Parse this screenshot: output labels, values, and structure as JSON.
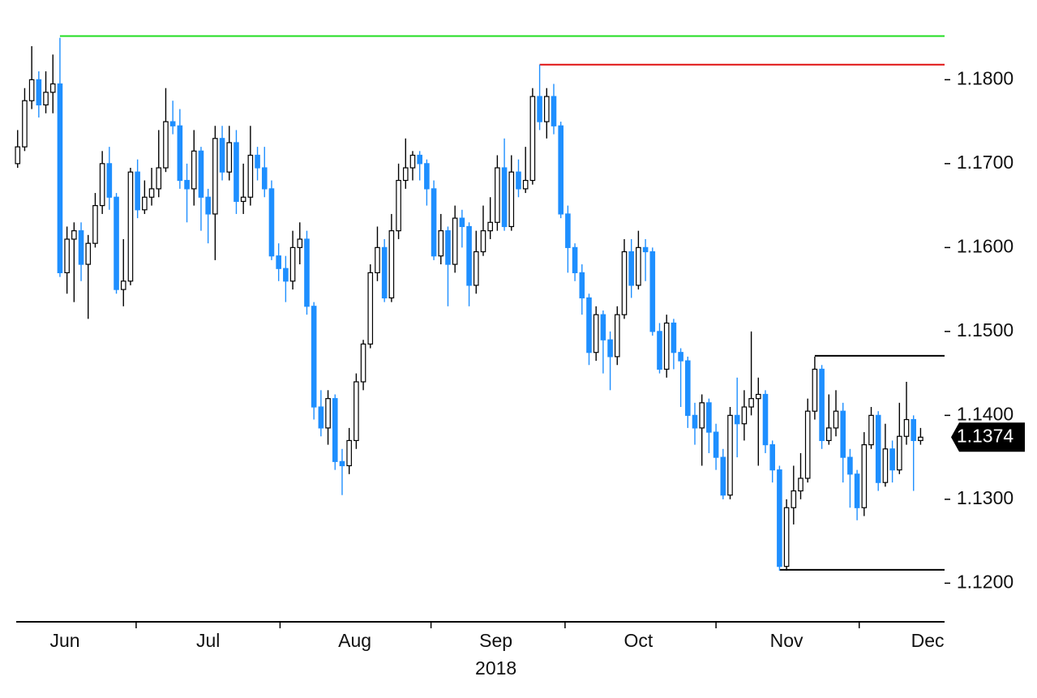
{
  "chart_data": {
    "type": "candlestick",
    "open": [
      1.17,
      1.172,
      1.1775,
      1.18,
      1.177,
      1.1785,
      1.1795,
      1.157,
      1.161,
      1.162,
      1.158,
      1.1605,
      1.165,
      1.17,
      1.166,
      1.155,
      1.156,
      1.169,
      1.1645,
      1.166,
      1.167,
      1.1695,
      1.175,
      1.1745,
      1.168,
      1.167,
      1.1715,
      1.166,
      1.164,
      1.173,
      1.169,
      1.1725,
      1.1655,
      1.166,
      1.171,
      1.1695,
      1.167,
      1.159,
      1.1575,
      1.156,
      1.16,
      1.161,
      1.153,
      1.141,
      1.1385,
      1.142,
      1.1345,
      1.134,
      1.137,
      1.144,
      1.1485,
      1.157,
      1.16,
      1.154,
      1.162,
      1.168,
      1.1695,
      1.171,
      1.17,
      1.167,
      1.159,
      1.162,
      1.158,
      1.1635,
      1.1625,
      1.1555,
      1.1595,
      1.162,
      1.163,
      1.1695,
      1.1625,
      1.169,
      1.167,
      1.168,
      1.178,
      1.175,
      1.178,
      1.1745,
      1.164,
      1.16,
      1.157,
      1.154,
      1.1475,
      1.152,
      1.149,
      1.147,
      1.152,
      1.1595,
      1.1555,
      1.16,
      1.1595,
      1.15,
      1.1455,
      1.151,
      1.1475,
      1.1465,
      1.14,
      1.1385,
      1.1415,
      1.138,
      1.135,
      1.1305,
      1.14,
      1.139,
      1.141,
      1.142,
      1.1425,
      1.1365,
      1.1335,
      1.122,
      1.129,
      1.131,
      1.1325,
      1.1405,
      1.1455,
      1.137,
      1.1385,
      1.1405,
      1.135,
      1.133,
      1.129,
      1.1365,
      1.14,
      1.132,
      1.136,
      1.1335,
      1.1375,
      1.1395,
      1.137
    ],
    "high": [
      1.174,
      1.179,
      1.184,
      1.181,
      1.181,
      1.183,
      1.185,
      1.1625,
      1.163,
      1.163,
      1.1615,
      1.1665,
      1.1715,
      1.172,
      1.1665,
      1.161,
      1.1695,
      1.1705,
      1.168,
      1.1695,
      1.174,
      1.179,
      1.1775,
      1.1765,
      1.17,
      1.174,
      1.172,
      1.167,
      1.1745,
      1.1745,
      1.1745,
      1.174,
      1.17,
      1.1745,
      1.172,
      1.172,
      1.168,
      1.1605,
      1.159,
      1.162,
      1.163,
      1.162,
      1.1535,
      1.143,
      1.143,
      1.1425,
      1.136,
      1.1385,
      1.145,
      1.149,
      1.158,
      1.1625,
      1.161,
      1.164,
      1.17,
      1.173,
      1.1715,
      1.1715,
      1.1705,
      1.168,
      1.164,
      1.1625,
      1.165,
      1.1645,
      1.163,
      1.162,
      1.165,
      1.166,
      1.171,
      1.173,
      1.171,
      1.1705,
      1.172,
      1.179,
      1.1818,
      1.179,
      1.1795,
      1.175,
      1.165,
      1.1605,
      1.158,
      1.1545,
      1.153,
      1.1525,
      1.15,
      1.153,
      1.161,
      1.161,
      1.162,
      1.161,
      1.16,
      1.151,
      1.152,
      1.1515,
      1.148,
      1.147,
      1.1415,
      1.1425,
      1.142,
      1.139,
      1.136,
      1.141,
      1.1445,
      1.143,
      1.15,
      1.1445,
      1.143,
      1.137,
      1.134,
      1.13,
      1.134,
      1.1355,
      1.142,
      1.147,
      1.146,
      1.1425,
      1.143,
      1.1415,
      1.136,
      1.1335,
      1.138,
      1.141,
      1.1405,
      1.139,
      1.137,
      1.1415,
      1.144,
      1.14,
      1.1385
    ],
    "low": [
      1.1695,
      1.1715,
      1.1765,
      1.1755,
      1.176,
      1.176,
      1.1565,
      1.1545,
      1.1535,
      1.156,
      1.1515,
      1.16,
      1.164,
      1.1645,
      1.1545,
      1.153,
      1.1555,
      1.1635,
      1.164,
      1.165,
      1.166,
      1.169,
      1.1735,
      1.167,
      1.163,
      1.165,
      1.162,
      1.1605,
      1.1585,
      1.168,
      1.168,
      1.164,
      1.164,
      1.165,
      1.168,
      1.166,
      1.1585,
      1.156,
      1.1535,
      1.155,
      1.158,
      1.152,
      1.1395,
      1.1375,
      1.1365,
      1.1335,
      1.1305,
      1.133,
      1.136,
      1.143,
      1.148,
      1.156,
      1.1535,
      1.1535,
      1.161,
      1.167,
      1.168,
      1.168,
      1.165,
      1.1585,
      1.158,
      1.153,
      1.157,
      1.16,
      1.153,
      1.1545,
      1.159,
      1.161,
      1.162,
      1.162,
      1.162,
      1.166,
      1.1665,
      1.1675,
      1.174,
      1.173,
      1.1735,
      1.1635,
      1.157,
      1.156,
      1.152,
      1.146,
      1.1465,
      1.145,
      1.143,
      1.146,
      1.1515,
      1.154,
      1.155,
      1.156,
      1.1495,
      1.145,
      1.1445,
      1.1455,
      1.141,
      1.1385,
      1.1365,
      1.134,
      1.1355,
      1.1335,
      1.13,
      1.13,
      1.135,
      1.137,
      1.14,
      1.134,
      1.1355,
      1.132,
      1.1215,
      1.1215,
      1.127,
      1.13,
      1.132,
      1.1395,
      1.136,
      1.1365,
      1.1375,
      1.132,
      1.129,
      1.1275,
      1.128,
      1.136,
      1.131,
      1.1315,
      1.132,
      1.133,
      1.1365,
      1.131,
      1.1365
    ],
    "close": [
      1.172,
      1.1775,
      1.18,
      1.177,
      1.1785,
      1.1795,
      1.157,
      1.161,
      1.162,
      1.158,
      1.1605,
      1.165,
      1.17,
      1.166,
      1.155,
      1.156,
      1.169,
      1.1645,
      1.166,
      1.167,
      1.1695,
      1.175,
      1.1745,
      1.168,
      1.167,
      1.1715,
      1.166,
      1.164,
      1.173,
      1.169,
      1.1725,
      1.1655,
      1.166,
      1.171,
      1.1695,
      1.167,
      1.159,
      1.1575,
      1.156,
      1.16,
      1.161,
      1.153,
      1.141,
      1.1385,
      1.142,
      1.1345,
      1.134,
      1.137,
      1.144,
      1.1485,
      1.157,
      1.16,
      1.154,
      1.162,
      1.168,
      1.1695,
      1.171,
      1.17,
      1.167,
      1.159,
      1.162,
      1.158,
      1.1635,
      1.1625,
      1.1555,
      1.1595,
      1.162,
      1.163,
      1.1695,
      1.1625,
      1.169,
      1.167,
      1.168,
      1.178,
      1.175,
      1.178,
      1.1745,
      1.164,
      1.16,
      1.157,
      1.154,
      1.1475,
      1.152,
      1.149,
      1.147,
      1.152,
      1.1595,
      1.1555,
      1.16,
      1.1595,
      1.15,
      1.1455,
      1.151,
      1.1475,
      1.1465,
      1.14,
      1.1385,
      1.1415,
      1.138,
      1.135,
      1.1305,
      1.14,
      1.139,
      1.141,
      1.142,
      1.1425,
      1.1365,
      1.1335,
      1.122,
      1.129,
      1.131,
      1.1325,
      1.1405,
      1.1455,
      1.137,
      1.1385,
      1.1405,
      1.135,
      1.133,
      1.129,
      1.1365,
      1.14,
      1.132,
      1.136,
      1.1335,
      1.1375,
      1.1395,
      1.137,
      1.1374
    ],
    "up_color": "#ffffff",
    "down_color": "#1e8fff",
    "levels": [
      {
        "value": 1.1852,
        "from": 6,
        "color": "#22dd22"
      },
      {
        "value": 1.1818,
        "from": 74,
        "color": "#e01010"
      },
      {
        "value": 1.1471,
        "from": 113,
        "color": "#000000"
      },
      {
        "value": 1.1216,
        "from": 108,
        "color": "#000000"
      }
    ],
    "last_price": 1.1374,
    "xlim": [
      -0.2,
      131.4
    ],
    "ylim": [
      1.1154,
      1.1895
    ],
    "yticks": [
      {
        "value": 1.12,
        "label": "1.1200"
      },
      {
        "value": 1.13,
        "label": "1.1300"
      },
      {
        "value": 1.14,
        "label": "1.1400"
      },
      {
        "value": 1.15,
        "label": "1.1500"
      },
      {
        "value": 1.16,
        "label": "1.1600"
      },
      {
        "value": 1.17,
        "label": "1.1700"
      },
      {
        "value": 1.18,
        "label": "1.1800"
      }
    ],
    "xlabels": [
      {
        "value": 6.7,
        "label": "Jun"
      },
      {
        "value": 27,
        "label": "Jul"
      },
      {
        "value": 47.8,
        "label": "Aug"
      },
      {
        "value": 67.8,
        "label": "Sep"
      },
      {
        "value": 88,
        "label": "Oct"
      },
      {
        "value": 109,
        "label": "Nov"
      },
      {
        "value": 129,
        "label": "Dec"
      }
    ],
    "xticks": [
      16.8,
      37.2,
      58.6,
      77.6,
      99,
      119.3
    ],
    "year_label": {
      "value": 67.8,
      "label": "2018"
    }
  }
}
